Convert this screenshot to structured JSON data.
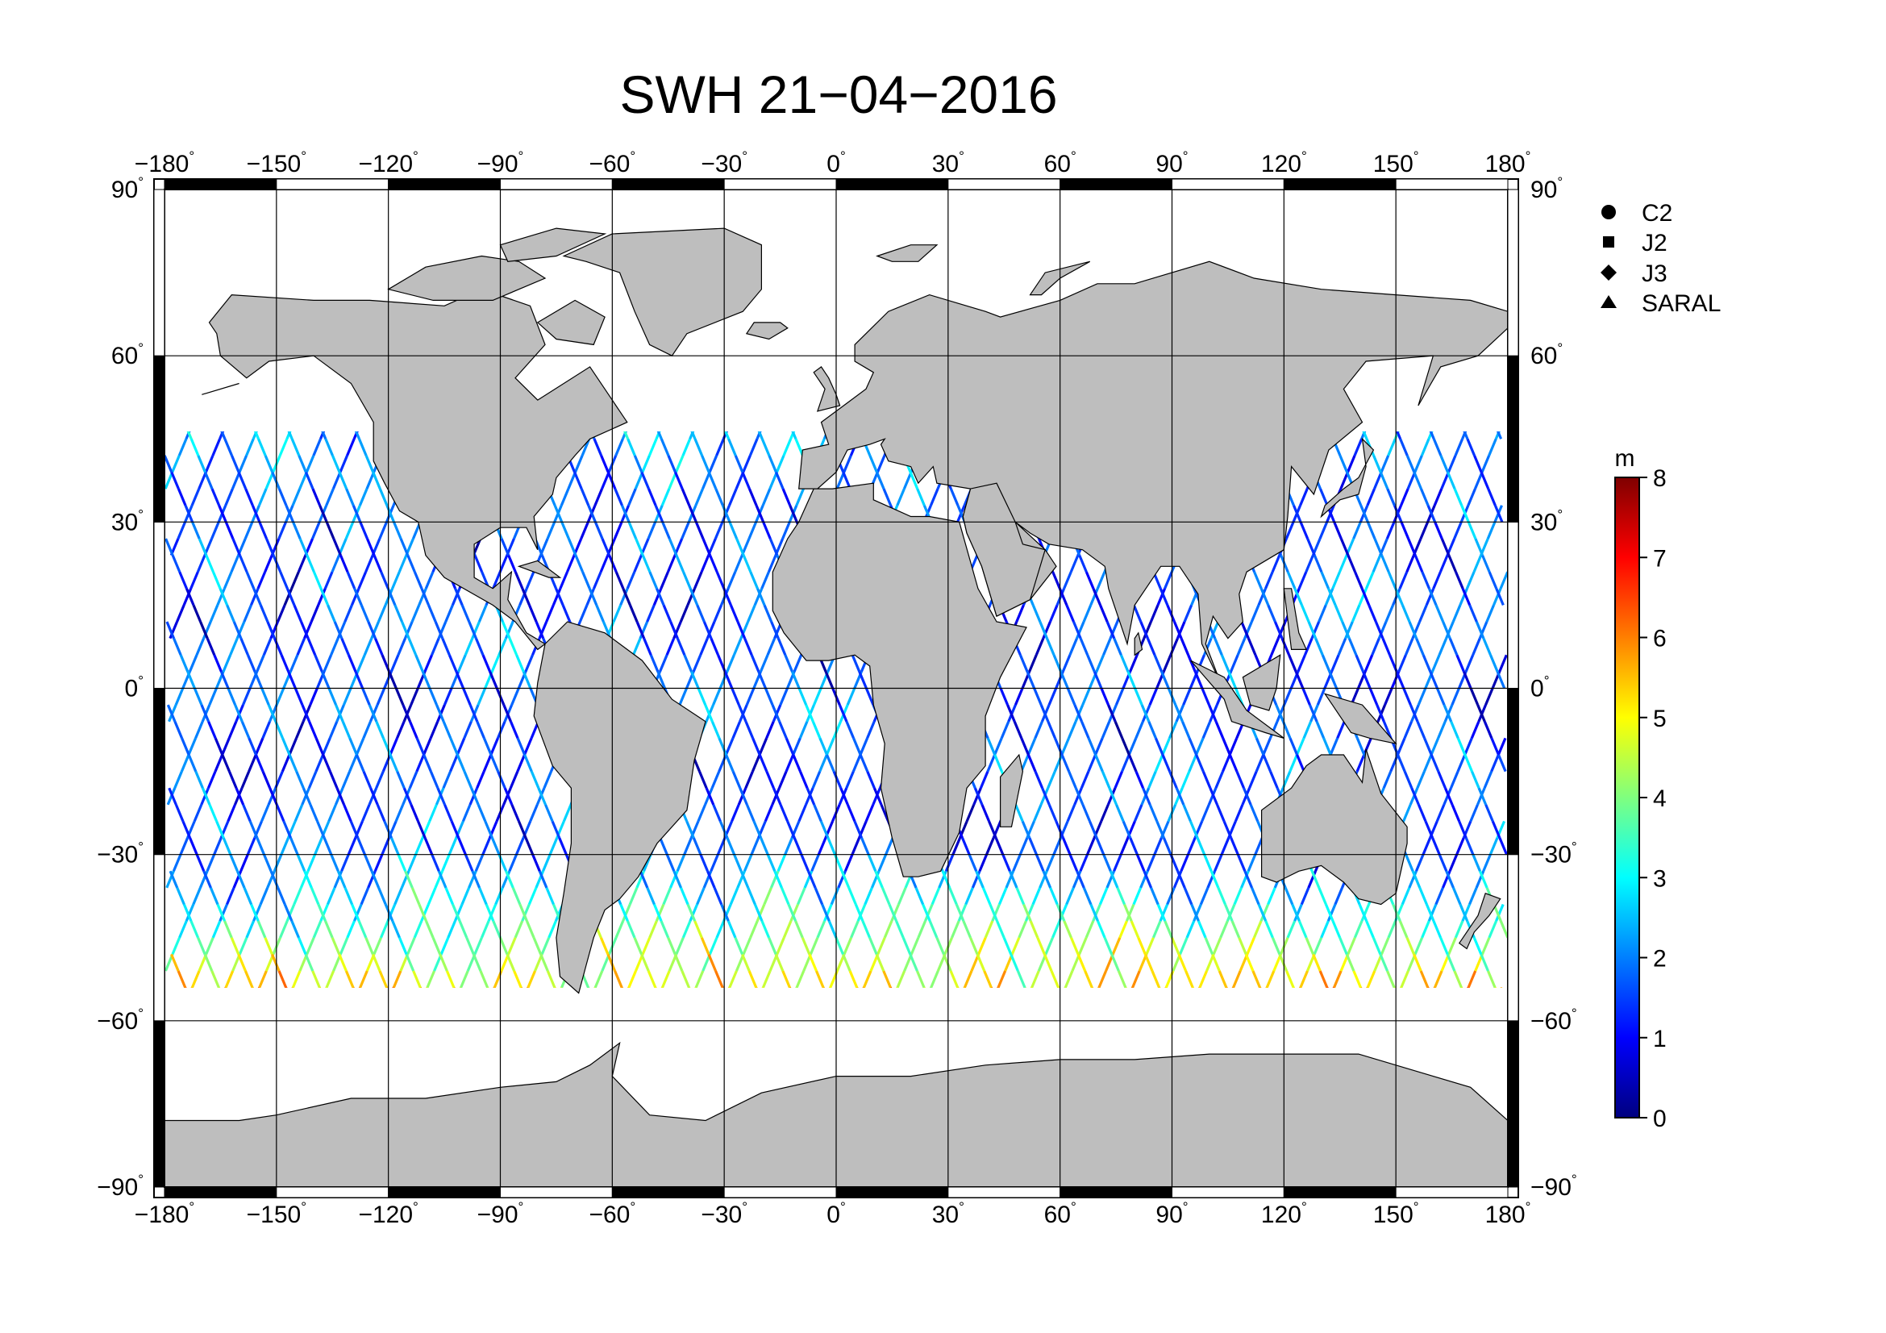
{
  "title": "SWH 21−04−2016",
  "map": {
    "lon_range": [
      -180,
      180
    ],
    "lat_range": [
      -90,
      90
    ],
    "lon_ticks": [
      -180,
      -150,
      -120,
      -90,
      -60,
      -30,
      0,
      30,
      60,
      90,
      120,
      150,
      180
    ],
    "lat_ticks": [
      -90,
      -60,
      -30,
      0,
      30,
      60,
      90
    ],
    "lon_tick_labels": [
      "−180",
      "−150",
      "−120",
      "−90",
      "−60",
      "−30",
      "0",
      "30",
      "60",
      "90",
      "120",
      "150",
      "180"
    ],
    "lat_tick_labels": [
      "−90",
      "−60",
      "−30",
      "0",
      "30",
      "60",
      "90"
    ],
    "degree_symbol": "°",
    "grid": true,
    "land_color": "#bebebe",
    "ice_color": "#ffffff",
    "frame": "alternating black/white 30° segments"
  },
  "legend": {
    "position": "right",
    "entries": [
      {
        "label": "C2",
        "marker": "circle"
      },
      {
        "label": "J2",
        "marker": "square"
      },
      {
        "label": "J3",
        "marker": "diamond"
      },
      {
        "label": "SARAL",
        "marker": "triangle"
      }
    ]
  },
  "colorbar": {
    "unit": "m",
    "min": 0,
    "max": 8,
    "ticks": [
      "0",
      "1",
      "2",
      "3",
      "4",
      "5",
      "6",
      "7",
      "8"
    ],
    "colormap": "jet",
    "colors": [
      "#00007f",
      "#0000ff",
      "#007fff",
      "#00ffff",
      "#7fff7f",
      "#ffff00",
      "#ff7f00",
      "#ff0000",
      "#7f0000"
    ]
  },
  "tracks": {
    "description_unit": "significant wave height along altimeter ground tracks",
    "ascending_count": 40,
    "descending_count": 40
  }
}
